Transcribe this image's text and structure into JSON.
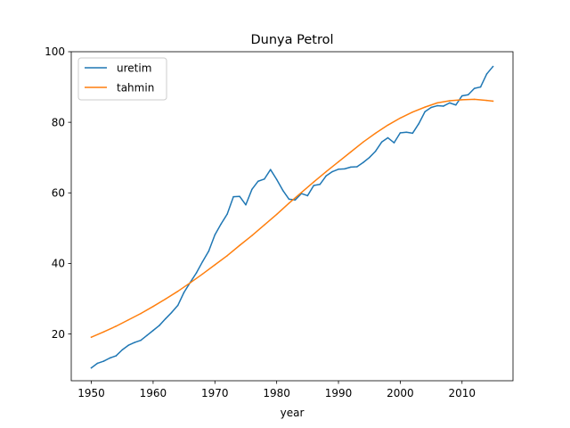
{
  "chart_data": {
    "type": "line",
    "title": "Dunya Petrol",
    "xlabel": "year",
    "ylabel": "",
    "xlim": [
      1946.75,
      2018.25
    ],
    "ylim": [
      6.75,
      100
    ],
    "x_ticks": [
      1950,
      1960,
      1970,
      1980,
      1990,
      2000,
      2010
    ],
    "y_ticks": [
      20,
      40,
      60,
      80,
      100
    ],
    "grid": false,
    "legend_position": "upper-left",
    "series": [
      {
        "name": "uretim",
        "color": "#1f77b4",
        "x": [
          1950,
          1951,
          1952,
          1953,
          1954,
          1955,
          1956,
          1957,
          1958,
          1959,
          1960,
          1961,
          1962,
          1963,
          1964,
          1965,
          1966,
          1967,
          1968,
          1969,
          1970,
          1971,
          1972,
          1973,
          1974,
          1975,
          1976,
          1977,
          1978,
          1979,
          1980,
          1981,
          1982,
          1983,
          1984,
          1985,
          1986,
          1987,
          1988,
          1989,
          1990,
          1991,
          1992,
          1993,
          1994,
          1995,
          1996,
          1997,
          1998,
          1999,
          2000,
          2001,
          2002,
          2003,
          2004,
          2005,
          2006,
          2007,
          2008,
          2009,
          2010,
          2011,
          2012,
          2013,
          2014,
          2015
        ],
        "y": [
          10.4,
          11.7,
          12.3,
          13.2,
          13.8,
          15.5,
          16.8,
          17.6,
          18.2,
          19.6,
          21.0,
          22.4,
          24.3,
          26.1,
          28.1,
          31.8,
          34.6,
          37.3,
          40.5,
          43.5,
          48.1,
          51.2,
          54.0,
          58.9,
          59.0,
          56.6,
          61.0,
          63.3,
          63.9,
          66.6,
          63.8,
          60.7,
          58.2,
          58.0,
          59.8,
          59.2,
          62.1,
          62.4,
          64.8,
          66.0,
          66.7,
          66.8,
          67.3,
          67.4,
          68.6,
          70.0,
          71.8,
          74.4,
          75.6,
          74.2,
          77.0,
          77.2,
          76.9,
          79.6,
          83.0,
          84.2,
          84.7,
          84.6,
          85.5,
          84.9,
          87.5,
          87.8,
          89.6,
          90.0,
          93.7,
          95.8
        ]
      },
      {
        "name": "tahmin",
        "color": "#ff7f0e",
        "x": [
          1950,
          1952,
          1954,
          1956,
          1958,
          1960,
          1962,
          1964,
          1966,
          1968,
          1970,
          1972,
          1974,
          1976,
          1978,
          1980,
          1982,
          1984,
          1986,
          1988,
          1990,
          1992,
          1994,
          1996,
          1998,
          2000,
          2002,
          2004,
          2006,
          2008,
          2010,
          2012,
          2014,
          2015
        ],
        "y": [
          19.1,
          20.6,
          22.2,
          24.0,
          25.8,
          27.8,
          29.9,
          32.1,
          34.5,
          37.0,
          39.6,
          42.2,
          45.1,
          47.9,
          50.9,
          53.9,
          57.1,
          60.1,
          63.1,
          66.0,
          68.8,
          71.6,
          74.4,
          76.9,
          79.2,
          81.2,
          82.9,
          84.3,
          85.5,
          86.1,
          86.4,
          86.5,
          86.2,
          86.0
        ]
      }
    ]
  }
}
